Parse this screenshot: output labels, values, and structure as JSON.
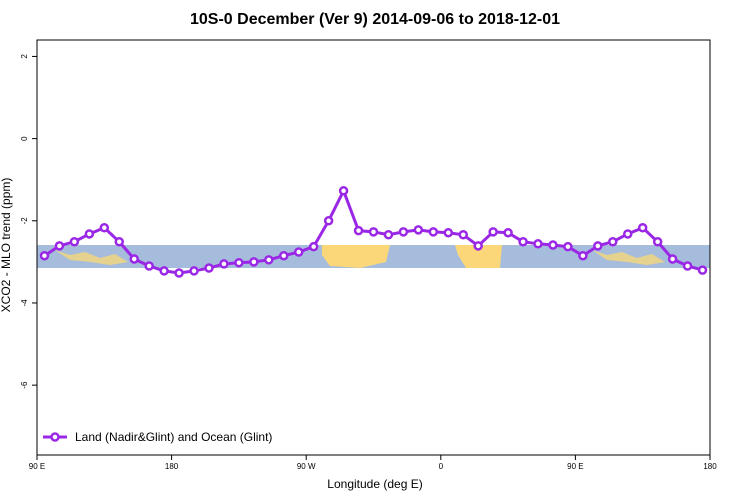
{
  "chart_data": {
    "type": "line",
    "title": "10S-0 December (Ver 9)   2014-09-06 to 2018-12-01",
    "x_label": "Longitude (deg E)",
    "y_label": "XCO2 - MLO trend (ppm)",
    "x": [
      95,
      105,
      115,
      125,
      135,
      145,
      155,
      165,
      175,
      185,
      195,
      205,
      215,
      225,
      235,
      245,
      255,
      265,
      275,
      285,
      295,
      305,
      315,
      325,
      335,
      345,
      355,
      365,
      375,
      385,
      395,
      405,
      415,
      425,
      435,
      445,
      455,
      465,
      475,
      485,
      495,
      505,
      515,
      525,
      535
    ],
    "series": [
      {
        "name": "Land (Nadir&Glint) and Ocean (Glint)",
        "color": "#9b27e6",
        "values": [
          -2.85,
          -2.61,
          -2.51,
          -2.32,
          -2.17,
          -2.51,
          -2.93,
          -3.1,
          -3.22,
          -3.27,
          -3.22,
          -3.15,
          -3.05,
          -3.02,
          -3.0,
          -2.95,
          -2.85,
          -2.76,
          -2.63,
          -2.0,
          -1.27,
          -2.24,
          -2.27,
          -2.34,
          -2.27,
          -2.22,
          -2.27,
          -2.29,
          -2.34,
          -2.61,
          -2.27,
          -2.29,
          -2.51,
          -2.56,
          -2.59,
          -2.63,
          -2.85,
          -2.61,
          -2.51,
          -2.32,
          -2.17,
          -2.51,
          -2.93,
          -3.1,
          -3.2
        ]
      }
    ],
    "xlim": [
      90,
      540
    ],
    "xticks": [
      {
        "value": 90,
        "label": "90 E"
      },
      {
        "value": 180,
        "label": "180"
      },
      {
        "value": 270,
        "label": "90 W"
      },
      {
        "value": 360,
        "label": "0"
      },
      {
        "value": 450,
        "label": "90 E"
      },
      {
        "value": 540,
        "label": "180"
      }
    ],
    "ylim": [
      -7.7,
      2.4
    ],
    "yticks": [
      -6,
      -4,
      -2,
      0,
      2
    ],
    "legend": "bottom-left"
  }
}
